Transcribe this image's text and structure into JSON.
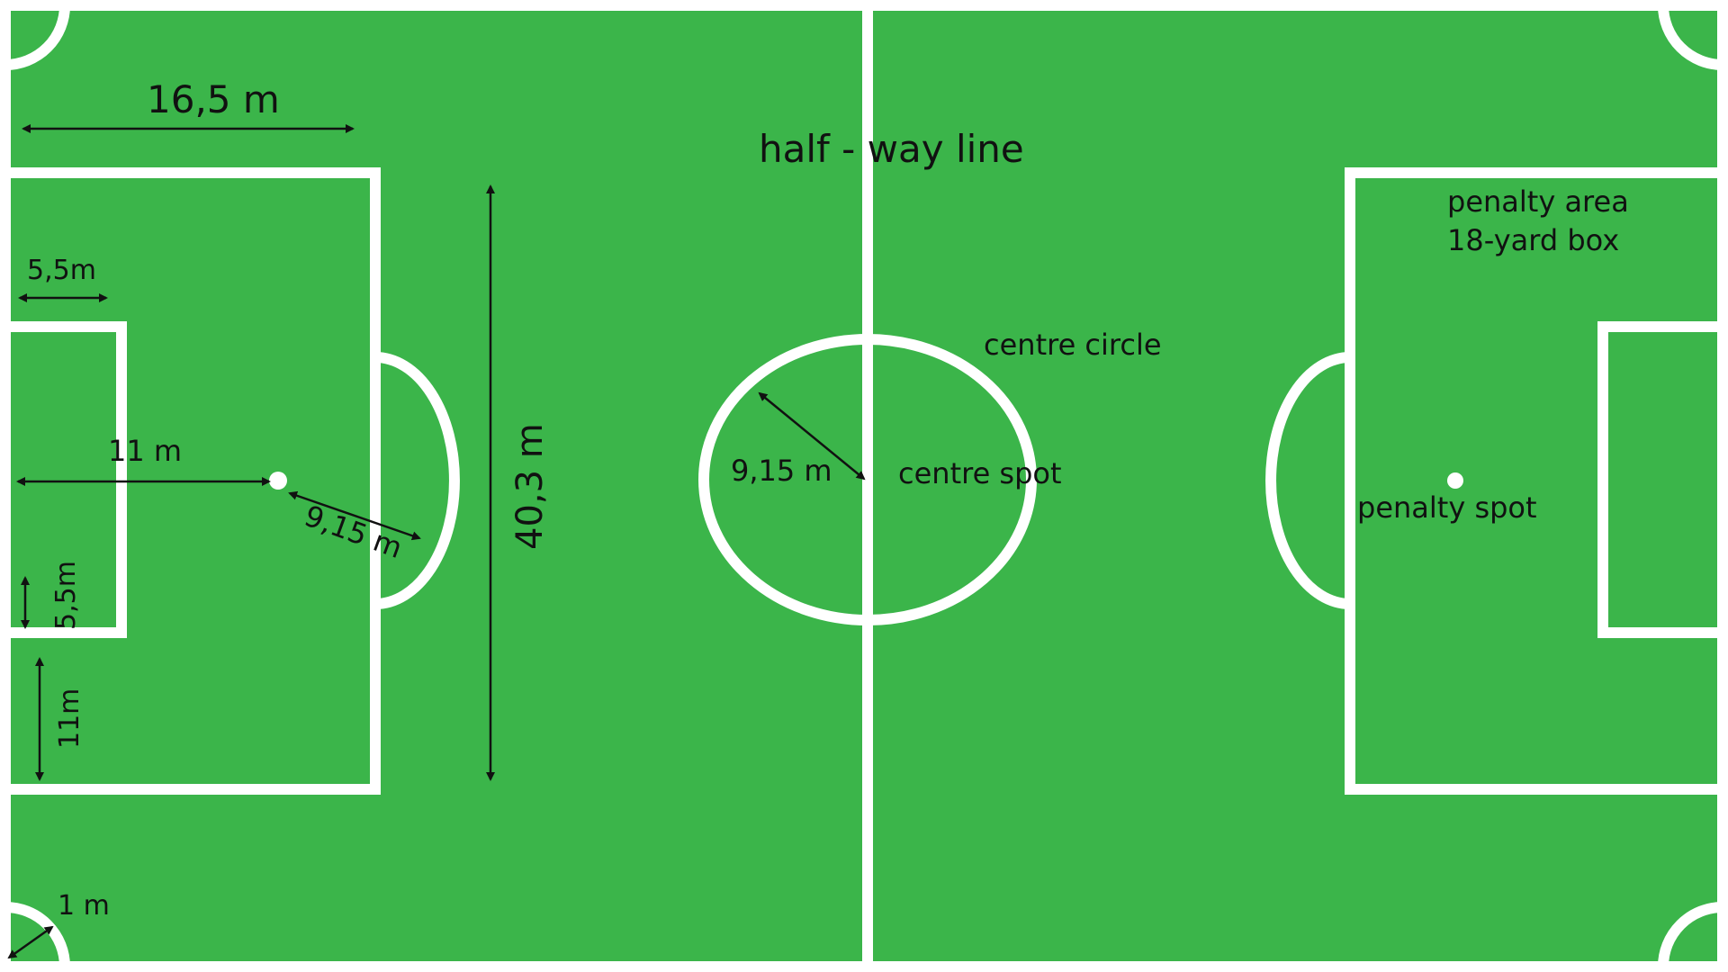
{
  "colors": {
    "field": "#3bb54a",
    "lines": "#ffffff",
    "text": "#111111"
  },
  "labels": {
    "penalty_area_width": "16,5 m",
    "halfway_line": "half - way line",
    "goal_area_depth": "5,5m",
    "penalty_area_length": "40,3 m",
    "penalty_spot_distance": "11 m",
    "arc_radius": "9,15 m",
    "goal_area_side": "5,5m",
    "side_11m": "11m",
    "corner_radius": "1 m",
    "centre_circle_radius": "9,15 m",
    "centre_circle": "centre circle",
    "centre_spot": "centre spot",
    "penalty_area_line1": "penalty area",
    "penalty_area_line2": "18-yard  box",
    "penalty_spot": "penalty spot"
  }
}
